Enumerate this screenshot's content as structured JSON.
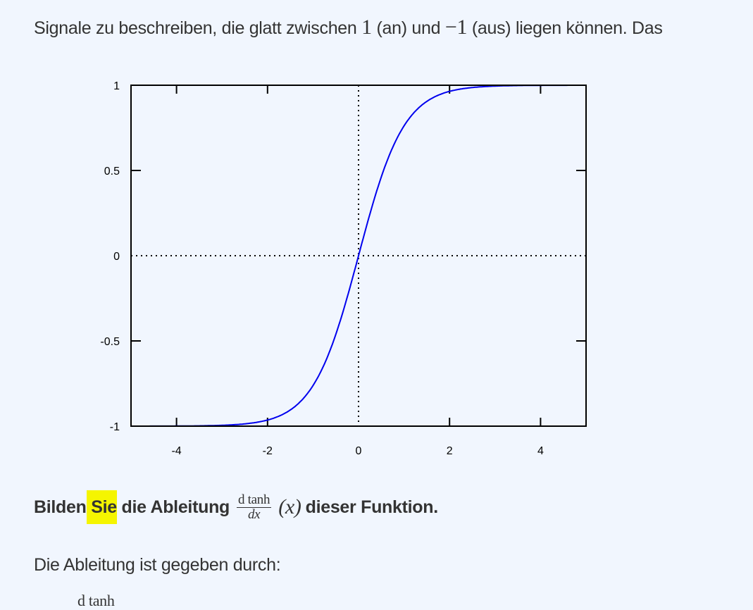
{
  "intro": {
    "before": "Signale zu beschreiben, die glatt zwischen ",
    "one": "1",
    "mid1": " (an) und ",
    "minus_one": "−1",
    "mid2": " (aus) liegen können. Das"
  },
  "task": {
    "part1": "Bilden",
    "highlighted": " Sie",
    "part2": " die Ableitung",
    "frac_num": "d tanh",
    "frac_den": "dx",
    "arg": "(x)",
    "part3": "dieser Funktion."
  },
  "answer": {
    "text": "Die Ableitung ist gegeben durch:",
    "cut_math": "d tanh"
  },
  "highlight_color": "#f5f500",
  "chart_data": {
    "type": "line",
    "function": "tanh(x)",
    "xlim": [
      -5,
      5
    ],
    "ylim": [
      -1,
      1
    ],
    "xticks": [
      "-4",
      "-2",
      "0",
      "2",
      "4"
    ],
    "yticks": [
      "1",
      "0.5",
      "0",
      "-0.5",
      "-1"
    ],
    "series": [
      {
        "color": "#0000ee",
        "x": [
          -5,
          -4,
          -3,
          -2,
          -1.5,
          -1,
          -0.5,
          0,
          0.5,
          1,
          1.5,
          2,
          3,
          4,
          5
        ],
        "y": [
          -0.9999,
          -0.9993,
          -0.9951,
          -0.964,
          -0.905,
          -0.762,
          -0.462,
          0,
          0.462,
          0.762,
          0.905,
          0.964,
          0.9951,
          0.9993,
          0.9999
        ]
      }
    ],
    "zero_lines": "dotted",
    "grid": false
  }
}
